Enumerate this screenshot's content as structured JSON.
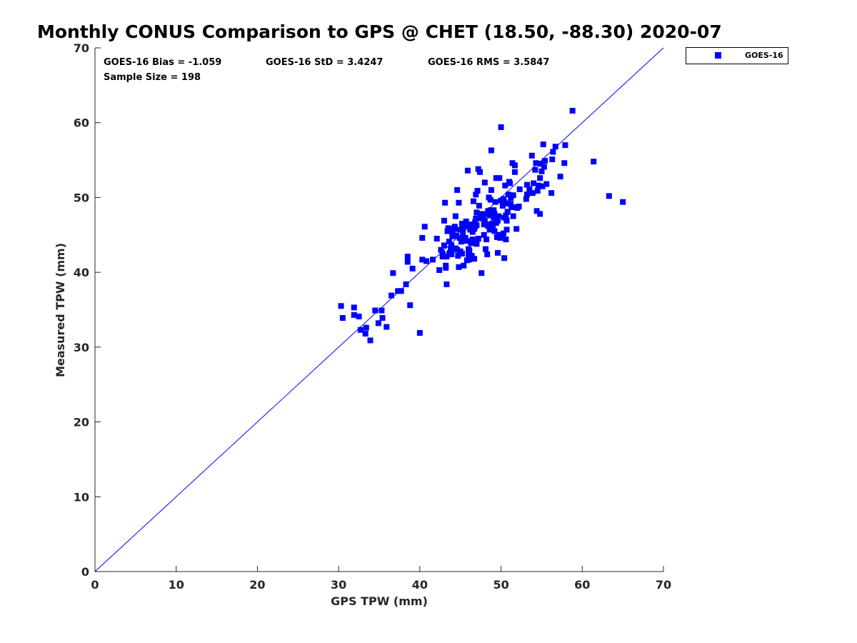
{
  "chart_data": {
    "type": "scatter",
    "title": "Monthly CONUS Comparison to GPS @ CHET (18.50, -88.30) 2020-07",
    "xlabel": "GPS TPW (mm)",
    "ylabel": "Measured TPW (mm)",
    "xlim": [
      0,
      70
    ],
    "ylim": [
      0,
      70
    ],
    "xticks": [
      "0",
      "10",
      "20",
      "30",
      "40",
      "50",
      "60",
      "70"
    ],
    "yticks": [
      "0",
      "10",
      "20",
      "30",
      "40",
      "50",
      "60",
      "70"
    ],
    "grid": false,
    "legend_position": "outside-top-right",
    "reference_line": {
      "type": "one-to-one",
      "color": "#0000ff"
    },
    "annotations": {
      "bias": "GOES-16 Bias = -1.059",
      "std": "GOES-16 StD = 3.4247",
      "rms": "GOES-16 RMS = 3.5847",
      "sample_size": "Sample Size = 198"
    },
    "series": [
      {
        "name": "GOES-16",
        "color": "#0000ff",
        "marker": "square",
        "points": [
          [
            30.3,
            35.5
          ],
          [
            30.5,
            33.9
          ],
          [
            31.9,
            35.3
          ],
          [
            31.9,
            34.3
          ],
          [
            32.5,
            34.1
          ],
          [
            32.7,
            32.3
          ],
          [
            33.3,
            31.8
          ],
          [
            33.4,
            32.6
          ],
          [
            33.9,
            30.9
          ],
          [
            34.5,
            34.9
          ],
          [
            34.9,
            33.2
          ],
          [
            35.3,
            34.9
          ],
          [
            35.4,
            33.9
          ],
          [
            35.9,
            32.7
          ],
          [
            36.5,
            36.9
          ],
          [
            36.7,
            39.9
          ],
          [
            37.3,
            37.5
          ],
          [
            37.7,
            37.5
          ],
          [
            38.3,
            38.4
          ],
          [
            38.5,
            42.1
          ],
          [
            38.5,
            41.4
          ],
          [
            38.8,
            35.6
          ],
          [
            39.1,
            40.5
          ],
          [
            40.0,
            31.9
          ],
          [
            40.3,
            41.7
          ],
          [
            40.3,
            44.6
          ],
          [
            40.6,
            46.1
          ],
          [
            40.8,
            41.5
          ],
          [
            41.6,
            41.7
          ],
          [
            42.1,
            44.5
          ],
          [
            42.4,
            40.3
          ],
          [
            42.6,
            43.0
          ],
          [
            42.8,
            42.5
          ],
          [
            43.0,
            46.9
          ],
          [
            43.1,
            49.3
          ],
          [
            43.2,
            40.6
          ],
          [
            43.2,
            40.9
          ],
          [
            43.3,
            38.4
          ],
          [
            43.3,
            42.1
          ],
          [
            43.4,
            45.5
          ],
          [
            43.5,
            45.9
          ],
          [
            43.6,
            42.4
          ],
          [
            43.7,
            42.6
          ],
          [
            43.8,
            43.1
          ],
          [
            43.9,
            43.6
          ],
          [
            44.0,
            44.8
          ],
          [
            44.0,
            45.4
          ],
          [
            44.2,
            45.8
          ],
          [
            44.3,
            46.1
          ],
          [
            44.4,
            47.5
          ],
          [
            44.5,
            44.9
          ],
          [
            44.6,
            51.0
          ],
          [
            44.7,
            42.2
          ],
          [
            44.8,
            40.7
          ],
          [
            44.8,
            49.3
          ],
          [
            44.9,
            45.7
          ],
          [
            45.1,
            44.1
          ],
          [
            45.2,
            42.5
          ],
          [
            45.2,
            46.5
          ],
          [
            45.3,
            45.2
          ],
          [
            45.4,
            40.9
          ],
          [
            45.6,
            44.6
          ],
          [
            45.7,
            46.3
          ],
          [
            45.8,
            41.6
          ],
          [
            45.9,
            53.6
          ],
          [
            46.0,
            43.1
          ],
          [
            46.0,
            42.4
          ],
          [
            46.1,
            41.7
          ],
          [
            46.2,
            45.7
          ],
          [
            46.3,
            46.4
          ],
          [
            46.4,
            42.2
          ],
          [
            46.5,
            44.4
          ],
          [
            46.6,
            49.5
          ],
          [
            46.7,
            45.8
          ],
          [
            46.7,
            41.8
          ],
          [
            46.8,
            46.1
          ],
          [
            46.9,
            50.4
          ],
          [
            47.0,
            43.8
          ],
          [
            47.0,
            46.3
          ],
          [
            47.1,
            50.9
          ],
          [
            47.2,
            53.8
          ],
          [
            47.3,
            48.9
          ],
          [
            47.4,
            53.4
          ],
          [
            47.5,
            47.8
          ],
          [
            47.6,
            39.9
          ],
          [
            47.7,
            47.3
          ],
          [
            47.8,
            47.6
          ],
          [
            47.9,
            45.0
          ],
          [
            48.0,
            46.9
          ],
          [
            48.0,
            52.0
          ],
          [
            48.1,
            43.1
          ],
          [
            48.2,
            44.4
          ],
          [
            48.3,
            42.4
          ],
          [
            48.4,
            48.2
          ],
          [
            48.4,
            46.2
          ],
          [
            48.5,
            50.0
          ],
          [
            48.6,
            47.6
          ],
          [
            48.7,
            49.7
          ],
          [
            48.8,
            51.0
          ],
          [
            48.8,
            56.3
          ],
          [
            48.9,
            46.5
          ],
          [
            49.0,
            46.2
          ],
          [
            49.1,
            47.3
          ],
          [
            49.2,
            45.5
          ],
          [
            49.3,
            49.4
          ],
          [
            49.4,
            52.6
          ],
          [
            49.5,
            44.7
          ],
          [
            49.6,
            46.9
          ],
          [
            49.6,
            42.6
          ],
          [
            49.7,
            47.5
          ],
          [
            49.8,
            52.6
          ],
          [
            49.9,
            44.6
          ],
          [
            50.0,
            59.4
          ],
          [
            50.0,
            49.6
          ],
          [
            50.1,
            44.9
          ],
          [
            50.2,
            48.9
          ],
          [
            50.3,
            45.2
          ],
          [
            50.4,
            49.4
          ],
          [
            50.4,
            41.9
          ],
          [
            50.5,
            51.6
          ],
          [
            50.6,
            44.4
          ],
          [
            50.6,
            47.6
          ],
          [
            50.7,
            45.7
          ],
          [
            50.8,
            48.1
          ],
          [
            50.9,
            50.4
          ],
          [
            51.0,
            52.1
          ],
          [
            51.1,
            51.9
          ],
          [
            51.2,
            49.1
          ],
          [
            51.3,
            48.7
          ],
          [
            51.4,
            54.6
          ],
          [
            51.5,
            47.5
          ],
          [
            51.6,
            48.7
          ],
          [
            51.7,
            53.4
          ],
          [
            51.7,
            54.3
          ],
          [
            51.9,
            45.8
          ],
          [
            52.2,
            48.8
          ],
          [
            53.2,
            51.7
          ],
          [
            53.2,
            50.4
          ],
          [
            53.5,
            51.1
          ],
          [
            53.8,
            55.6
          ],
          [
            53.9,
            50.6
          ],
          [
            54.0,
            51.9
          ],
          [
            54.2,
            53.7
          ],
          [
            54.3,
            54.6
          ],
          [
            54.4,
            48.2
          ],
          [
            54.6,
            51.6
          ],
          [
            54.8,
            52.6
          ],
          [
            54.8,
            47.8
          ],
          [
            54.9,
            54.5
          ],
          [
            55.0,
            53.5
          ],
          [
            55.1,
            51.5
          ],
          [
            55.2,
            57.1
          ],
          [
            55.3,
            54.1
          ],
          [
            55.4,
            54.9
          ],
          [
            56.2,
            50.6
          ],
          [
            56.3,
            55.1
          ],
          [
            56.4,
            56.1
          ],
          [
            56.7,
            56.8
          ],
          [
            57.3,
            52.8
          ],
          [
            57.8,
            54.6
          ],
          [
            57.9,
            57.0
          ],
          [
            58.8,
            61.6
          ],
          [
            61.4,
            54.8
          ],
          [
            63.3,
            50.2
          ],
          [
            65.0,
            49.4
          ],
          [
            45.5,
            46.2
          ],
          [
            46.3,
            43.9
          ],
          [
            47.7,
            47.6
          ],
          [
            48.9,
            47.8
          ],
          [
            49.4,
            46.6
          ],
          [
            50.8,
            49.2
          ],
          [
            44.9,
            44.6
          ],
          [
            43.9,
            42.4
          ],
          [
            45.3,
            45.9
          ],
          [
            46.8,
            46.7
          ],
          [
            47.4,
            47.2
          ],
          [
            48.2,
            47.8
          ],
          [
            49.1,
            48.3
          ],
          [
            50.3,
            49.8
          ],
          [
            51.5,
            50.3
          ],
          [
            52.3,
            51.1
          ],
          [
            44.1,
            45.0
          ],
          [
            45.8,
            44.2
          ],
          [
            46.5,
            45.4
          ],
          [
            47.9,
            46.4
          ],
          [
            49.2,
            47.8
          ],
          [
            50.7,
            46.9
          ],
          [
            44.6,
            43.0
          ],
          [
            43.6,
            44.1
          ],
          [
            45.0,
            42.8
          ],
          [
            46.1,
            42.9
          ],
          [
            47.2,
            44.5
          ],
          [
            48.6,
            45.7
          ],
          [
            49.8,
            45.0
          ],
          [
            50.4,
            47.3
          ],
          [
            51.2,
            49.9
          ],
          [
            52.0,
            48.6
          ],
          [
            53.1,
            49.8
          ],
          [
            54.5,
            50.9
          ],
          [
            55.6,
            51.8
          ],
          [
            43.0,
            43.6
          ],
          [
            42.8,
            42.1
          ],
          [
            44.4,
            43.2
          ],
          [
            45.7,
            46.8
          ],
          [
            46.9,
            47.2
          ],
          [
            48.3,
            46.4
          ],
          [
            47.0,
            48.0
          ],
          [
            48.7,
            48.3
          ]
        ]
      }
    ]
  }
}
